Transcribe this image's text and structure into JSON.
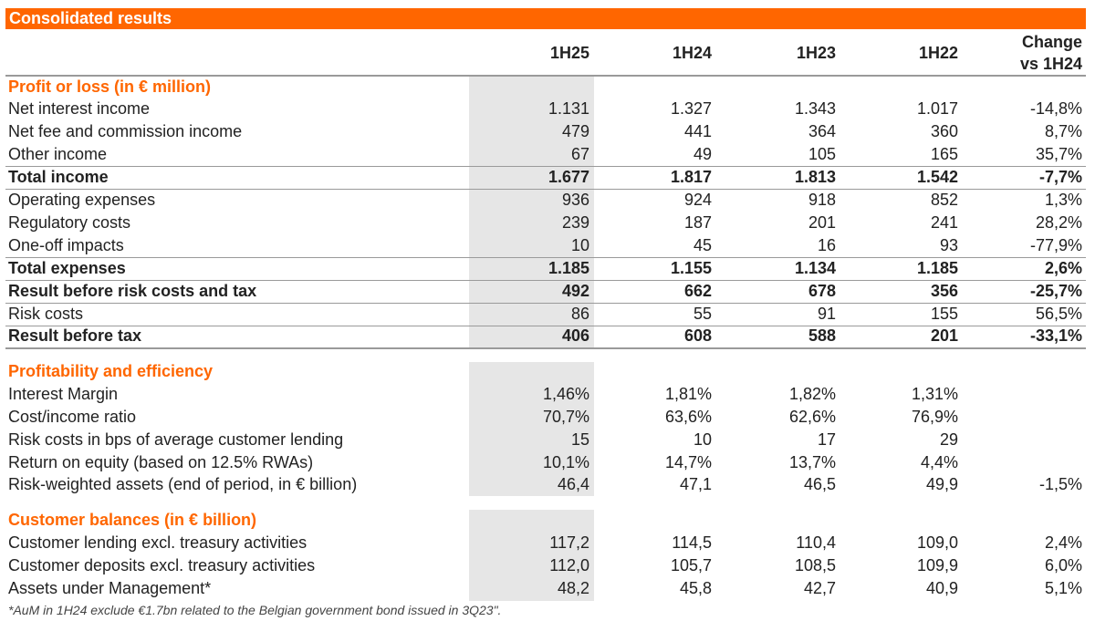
{
  "title": "Consolidated results",
  "columns": [
    "1H25",
    "1H24",
    "1H23",
    "1H22"
  ],
  "change_header": [
    "Change",
    "vs 1H24"
  ],
  "sections": {
    "pl": "Profit or loss (in € million)",
    "profitability": "Profitability and efficiency",
    "balances": "Customer balances (in € billion)"
  },
  "rows": [
    {
      "label": "Net interest income",
      "values": [
        "1.131",
        "1.327",
        "1.343",
        "1.017",
        "-14,8%"
      ]
    },
    {
      "label": "Net fee and commission income",
      "values": [
        "479",
        "441",
        "364",
        "360",
        "8,7%"
      ]
    },
    {
      "label": "Other income",
      "values": [
        "67",
        "49",
        "105",
        "165",
        "35,7%"
      ]
    },
    {
      "label": "Total income",
      "values": [
        "1.677",
        "1.817",
        "1.813",
        "1.542",
        "-7,7%"
      ]
    },
    {
      "label": "Operating expenses",
      "values": [
        "936",
        "924",
        "918",
        "852",
        "1,3%"
      ]
    },
    {
      "label": "Regulatory costs",
      "values": [
        "239",
        "187",
        "201",
        "241",
        "28,2%"
      ]
    },
    {
      "label": "One-off impacts",
      "values": [
        "10",
        "45",
        "16",
        "93",
        "-77,9%"
      ]
    },
    {
      "label": "Total expenses",
      "values": [
        "1.185",
        "1.155",
        "1.134",
        "1.185",
        "2,6%"
      ]
    },
    {
      "label": "Result before risk costs and tax",
      "values": [
        "492",
        "662",
        "678",
        "356",
        "-25,7%"
      ]
    },
    {
      "label": "Risk costs",
      "values": [
        "86",
        "55",
        "91",
        "155",
        "56,5%"
      ]
    },
    {
      "label": "Result before tax",
      "values": [
        "406",
        "608",
        "588",
        "201",
        "-33,1%"
      ]
    },
    {
      "label": "Interest Margin",
      "values": [
        "1,46%",
        "1,81%",
        "1,82%",
        "1,31%",
        ""
      ]
    },
    {
      "label": "Cost/income ratio",
      "values": [
        "70,7%",
        "63,6%",
        "62,6%",
        "76,9%",
        ""
      ]
    },
    {
      "label": "Risk costs in bps of average customer lending",
      "values": [
        "15",
        "10",
        "17",
        "29",
        ""
      ]
    },
    {
      "label": "Return on equity (based on 12.5% RWAs)",
      "values": [
        "10,1%",
        "14,7%",
        "13,7%",
        "4,4%",
        ""
      ]
    },
    {
      "label": "Risk-weighted assets (end of period, in € billion)",
      "values": [
        "46,4",
        "47,1",
        "46,5",
        "49,9",
        "-1,5%"
      ]
    },
    {
      "label": "Customer lending excl. treasury activities",
      "values": [
        "117,2",
        "114,5",
        "110,4",
        "109,0",
        "2,4%"
      ]
    },
    {
      "label": "Customer deposits excl. treasury activities",
      "values": [
        "112,0",
        "105,7",
        "108,5",
        "109,9",
        "6,0%"
      ]
    },
    {
      "label": "Assets under Management*",
      "values": [
        "48,2",
        "45,8",
        "42,7",
        "40,9",
        "5,1%"
      ]
    }
  ],
  "footnote": "*AuM in 1H24 exclude €1.7bn related to the Belgian government bond issued in 3Q23\".",
  "colors": {
    "accent": "#ff6600",
    "shade": "#e6e6e6"
  }
}
